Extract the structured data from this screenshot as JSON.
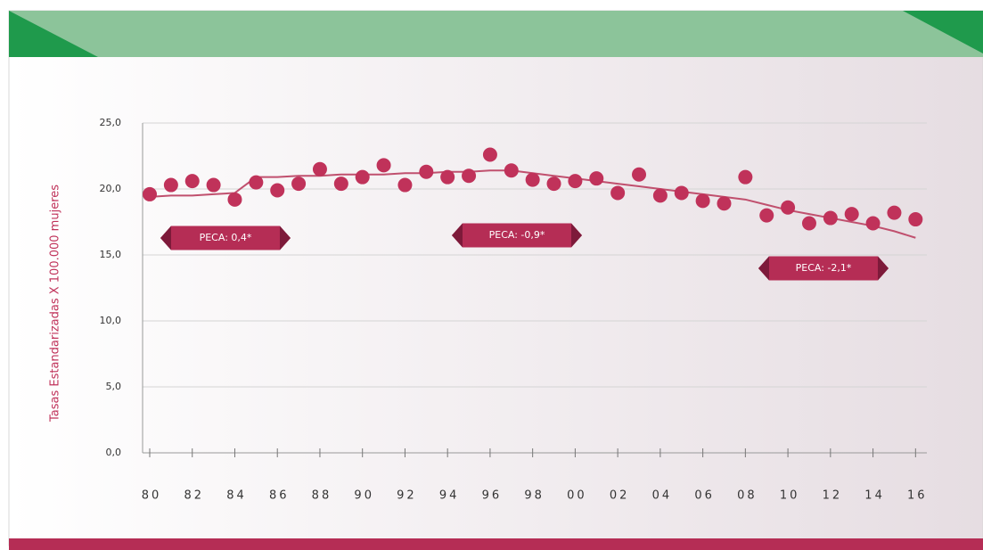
{
  "chart_data": {
    "type": "scatter",
    "y_label": "Tasas Estandarizadas X 100.000 mujeres",
    "categories": [
      "80",
      null,
      "82",
      null,
      "84",
      null,
      "86",
      null,
      "88",
      null,
      "90",
      null,
      "92",
      null,
      "94",
      null,
      "96",
      null,
      "98",
      null,
      "00",
      null,
      "02",
      null,
      "04",
      null,
      "06",
      null,
      "08",
      null,
      "10",
      null,
      "12",
      null,
      "14",
      null,
      "16"
    ],
    "series": [
      {
        "color": "#c0325a",
        "values": [
          19.6,
          20.3,
          20.6,
          20.3,
          19.2,
          20.5,
          19.9,
          20.4,
          21.5,
          20.4,
          20.9,
          21.8,
          20.3,
          21.3,
          20.9,
          21.0,
          22.6,
          21.4,
          20.7,
          20.4,
          20.6,
          20.8,
          19.7,
          21.1,
          19.5,
          19.7,
          19.1,
          18.9,
          20.9,
          18.0,
          18.6,
          17.4,
          17.8,
          18.1,
          17.4,
          18.2,
          17.7
        ]
      },
      {
        "color": "#c0506e",
        "values": [
          19.4,
          19.5,
          19.5,
          19.6,
          19.7,
          20.9,
          20.9,
          21.0,
          21.0,
          21.1,
          21.1,
          21.1,
          21.2,
          21.2,
          21.3,
          21.3,
          21.4,
          21.4,
          21.2,
          21.0,
          20.8,
          20.6,
          20.4,
          20.2,
          20.0,
          19.8,
          19.6,
          19.4,
          19.2,
          18.8,
          18.4,
          18.1,
          17.8,
          17.5,
          17.2,
          16.8,
          16.3
        ]
      }
    ],
    "annotations": [
      "PECA: 0,4*",
      "PECA: -0,9*",
      "PECA: -2,1*"
    ],
    "ylim": [
      0,
      25
    ],
    "yticks": [
      {
        "value": 0,
        "label": "0,0"
      },
      {
        "value": 5,
        "label": "5,0"
      },
      {
        "value": 10,
        "label": "10,0"
      },
      {
        "value": 15,
        "label": "15,0"
      },
      {
        "value": 20,
        "label": "20,0"
      },
      {
        "value": 25,
        "label": "25,0"
      }
    ],
    "grid": true
  }
}
